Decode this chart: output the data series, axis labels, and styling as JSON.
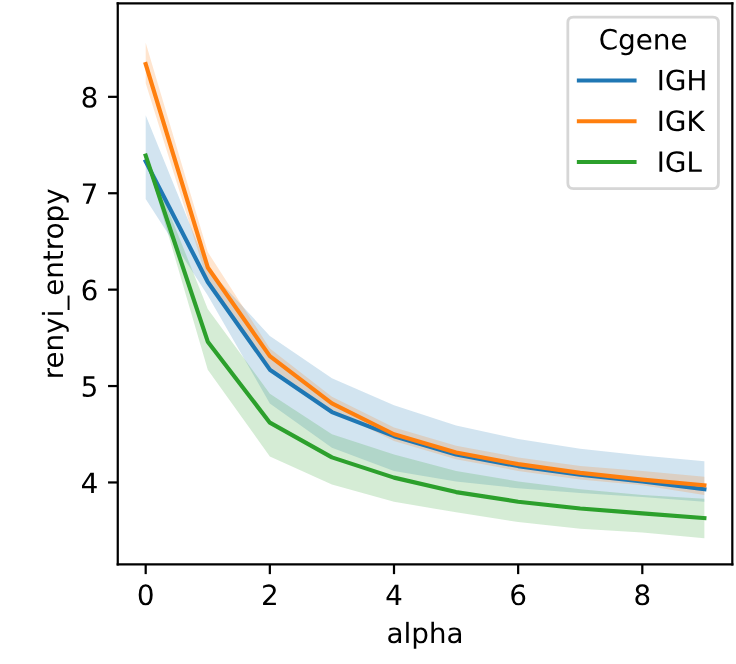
{
  "chart_data": {
    "type": "line",
    "xlabel": "alpha",
    "ylabel": "renyi_entropy",
    "legend_title": "Cgene",
    "legend": "top right",
    "grid": false,
    "x": [
      0,
      1,
      2,
      3,
      4,
      5,
      6,
      7,
      8,
      9
    ],
    "xlim": [
      -0.45,
      9.45
    ],
    "xticks": [
      0,
      2,
      4,
      6,
      8
    ],
    "ylim": [
      3.15,
      8.97
    ],
    "yticks": [
      4,
      5,
      6,
      7,
      8
    ],
    "series": [
      {
        "name": "IGH",
        "color": "#1f77b4",
        "values": [
          7.33,
          6.08,
          5.17,
          4.73,
          4.48,
          4.29,
          4.17,
          4.08,
          4.01,
          3.93
        ],
        "lower": [
          6.94,
          5.94,
          4.82,
          4.36,
          4.12,
          4.01,
          3.94,
          3.89,
          3.85,
          3.8
        ],
        "upper": [
          7.81,
          6.22,
          5.52,
          5.08,
          4.8,
          4.59,
          4.45,
          4.35,
          4.28,
          4.22
        ]
      },
      {
        "name": "IGK",
        "color": "#ff7f0e",
        "values": [
          8.34,
          6.23,
          5.31,
          4.82,
          4.5,
          4.31,
          4.19,
          4.1,
          4.03,
          3.97
        ],
        "lower": [
          8.14,
          6.08,
          5.2,
          4.75,
          4.43,
          4.24,
          4.12,
          4.03,
          3.97,
          3.87
        ],
        "upper": [
          8.56,
          6.39,
          5.39,
          4.89,
          4.57,
          4.38,
          4.26,
          4.17,
          4.12,
          4.06
        ]
      },
      {
        "name": "IGL",
        "color": "#2ca02c",
        "values": [
          7.39,
          5.46,
          4.62,
          4.26,
          4.05,
          3.9,
          3.8,
          3.73,
          3.68,
          3.63
        ],
        "lower": [
          7.37,
          5.17,
          4.27,
          3.98,
          3.8,
          3.69,
          3.59,
          3.52,
          3.48,
          3.42
        ],
        "upper": [
          7.41,
          5.8,
          4.92,
          4.5,
          4.29,
          4.12,
          4.01,
          3.93,
          3.87,
          3.83
        ]
      }
    ]
  }
}
